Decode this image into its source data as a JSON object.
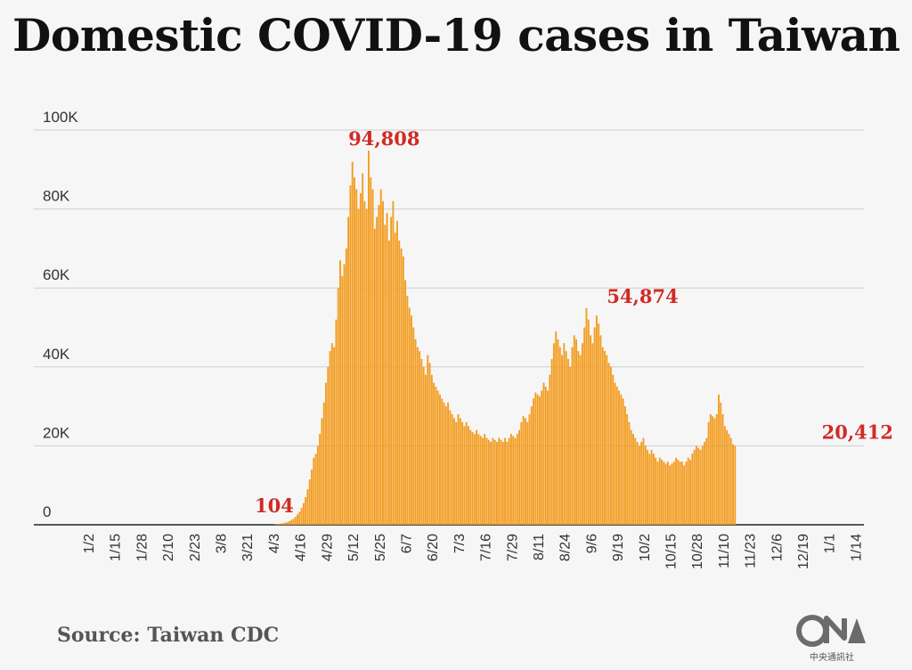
{
  "title": "Domestic COVID-19 cases in Taiwan",
  "source": "Source: Taiwan CDC",
  "logo": {
    "text": "CNA",
    "subtitle": "中央通訊社"
  },
  "colors": {
    "bar": "#f39c1f",
    "annotation": "#d12a26",
    "grid": "#cfcfcf",
    "background": "#f6f6f6"
  },
  "chart_data": {
    "type": "bar",
    "title": "Domestic COVID-19 cases in Taiwan",
    "xlabel": "",
    "ylabel": "",
    "ylim": [
      0,
      100000
    ],
    "grid": true,
    "yticks": [
      {
        "value": 0,
        "label": "0"
      },
      {
        "value": 20000,
        "label": "20K"
      },
      {
        "value": 40000,
        "label": "40K"
      },
      {
        "value": 60000,
        "label": "60K"
      },
      {
        "value": 80000,
        "label": "80K"
      },
      {
        "value": 100000,
        "label": "100K"
      }
    ],
    "xticks": [
      {
        "index": 0,
        "label": "1/2"
      },
      {
        "index": 13,
        "label": "1/15"
      },
      {
        "index": 26,
        "label": "1/28"
      },
      {
        "index": 39,
        "label": "2/10"
      },
      {
        "index": 52,
        "label": "2/23"
      },
      {
        "index": 65,
        "label": "3/8"
      },
      {
        "index": 78,
        "label": "3/21"
      },
      {
        "index": 91,
        "label": "4/3"
      },
      {
        "index": 104,
        "label": "4/16"
      },
      {
        "index": 117,
        "label": "4/29"
      },
      {
        "index": 130,
        "label": "5/12"
      },
      {
        "index": 143,
        "label": "5/25"
      },
      {
        "index": 156,
        "label": "6/7"
      },
      {
        "index": 169,
        "label": "6/20"
      },
      {
        "index": 182,
        "label": "7/3"
      },
      {
        "index": 195,
        "label": "7/16"
      },
      {
        "index": 208,
        "label": "7/29"
      },
      {
        "index": 221,
        "label": "8/11"
      },
      {
        "index": 234,
        "label": "8/24"
      },
      {
        "index": 247,
        "label": "9/6"
      },
      {
        "index": 260,
        "label": "9/19"
      },
      {
        "index": 273,
        "label": "10/2"
      },
      {
        "index": 286,
        "label": "10/15"
      },
      {
        "index": 299,
        "label": "10/28"
      },
      {
        "index": 312,
        "label": "11/10"
      },
      {
        "index": 325,
        "label": "11/23"
      },
      {
        "index": 338,
        "label": "12/6"
      },
      {
        "index": 351,
        "label": "12/19"
      },
      {
        "index": 364,
        "label": "1/1"
      },
      {
        "index": 377,
        "label": "1/14"
      }
    ],
    "annotations": [
      {
        "index": 91,
        "value": 104,
        "label": "104"
      },
      {
        "index": 145,
        "value": 94808,
        "label": "94,808"
      },
      {
        "index": 272,
        "value": 54874,
        "label": "54,874"
      },
      {
        "index": 378,
        "value": 20412,
        "label": "20,412"
      }
    ],
    "values": [
      0,
      0,
      0,
      0,
      0,
      0,
      0,
      0,
      0,
      0,
      0,
      0,
      0,
      0,
      0,
      0,
      0,
      0,
      0,
      0,
      0,
      0,
      0,
      0,
      0,
      0,
      0,
      0,
      0,
      0,
      0,
      0,
      0,
      0,
      0,
      0,
      0,
      0,
      0,
      0,
      0,
      0,
      0,
      0,
      0,
      0,
      0,
      0,
      0,
      0,
      0,
      0,
      0,
      0,
      0,
      0,
      0,
      0,
      0,
      0,
      0,
      0,
      0,
      0,
      0,
      0,
      0,
      0,
      0,
      0,
      0,
      0,
      0,
      0,
      0,
      0,
      0,
      0,
      0,
      0,
      0,
      0,
      0,
      0,
      0,
      0,
      0,
      0,
      0,
      0,
      0,
      104,
      150,
      220,
      300,
      400,
      550,
      700,
      900,
      1200,
      1500,
      2000,
      2600,
      3300,
      4300,
      5500,
      7000,
      9000,
      11500,
      14000,
      17000,
      18000,
      20000,
      23000,
      27000,
      31000,
      36000,
      40000,
      44000,
      46000,
      45000,
      52000,
      60000,
      67000,
      63000,
      66000,
      70000,
      78000,
      86000,
      92000,
      88000,
      85000,
      80000,
      84000,
      89000,
      82000,
      80000,
      94808,
      88000,
      85000,
      75000,
      78000,
      81000,
      85000,
      82000,
      76000,
      79000,
      72000,
      78000,
      82000,
      74000,
      77000,
      72000,
      70000,
      68000,
      62000,
      58000,
      55000,
      53000,
      50000,
      47000,
      45000,
      44000,
      42000,
      40000,
      38000,
      43000,
      41000,
      38000,
      36000,
      35000,
      34000,
      33000,
      32000,
      31000,
      30000,
      31000,
      29000,
      28000,
      27000,
      26000,
      28000,
      27000,
      26000,
      25000,
      26000,
      25000,
      24000,
      23500,
      23000,
      24000,
      23000,
      22500,
      22000,
      23000,
      22000,
      21500,
      21000,
      22000,
      21500,
      21000,
      22000,
      21500,
      21000,
      22000,
      21000,
      22000,
      23000,
      22500,
      22000,
      23000,
      24000,
      26000,
      27500,
      27000,
      26000,
      28000,
      30000,
      32000,
      33500,
      33000,
      32500,
      34000,
      36000,
      35000,
      34000,
      38000,
      42000,
      46000,
      49000,
      47000,
      45000,
      43000,
      46000,
      44000,
      42000,
      40000,
      45000,
      48000,
      47000,
      44000,
      43000,
      46000,
      50000,
      54874,
      52000,
      48000,
      46000,
      50000,
      53000,
      51000,
      48000,
      45000,
      44000,
      43000,
      41000,
      40000,
      38000,
      36000,
      35000,
      34000,
      33000,
      32000,
      30000,
      28000,
      26000,
      24000,
      23000,
      22000,
      21000,
      20000,
      21000,
      22000,
      20000,
      19000,
      18000,
      19000,
      18000,
      17000,
      16000,
      17000,
      16500,
      16000,
      15500,
      16000,
      15000,
      15500,
      16000,
      17000,
      16500,
      16000,
      16000,
      15000,
      16000,
      17000,
      16500,
      18000,
      19000,
      20000,
      19500,
      19000,
      20000,
      21000,
      22000,
      26000,
      28000,
      27500,
      27000,
      28000,
      33000,
      31000,
      28000,
      25000,
      24000,
      23000,
      22000,
      20412,
      20000
    ]
  }
}
